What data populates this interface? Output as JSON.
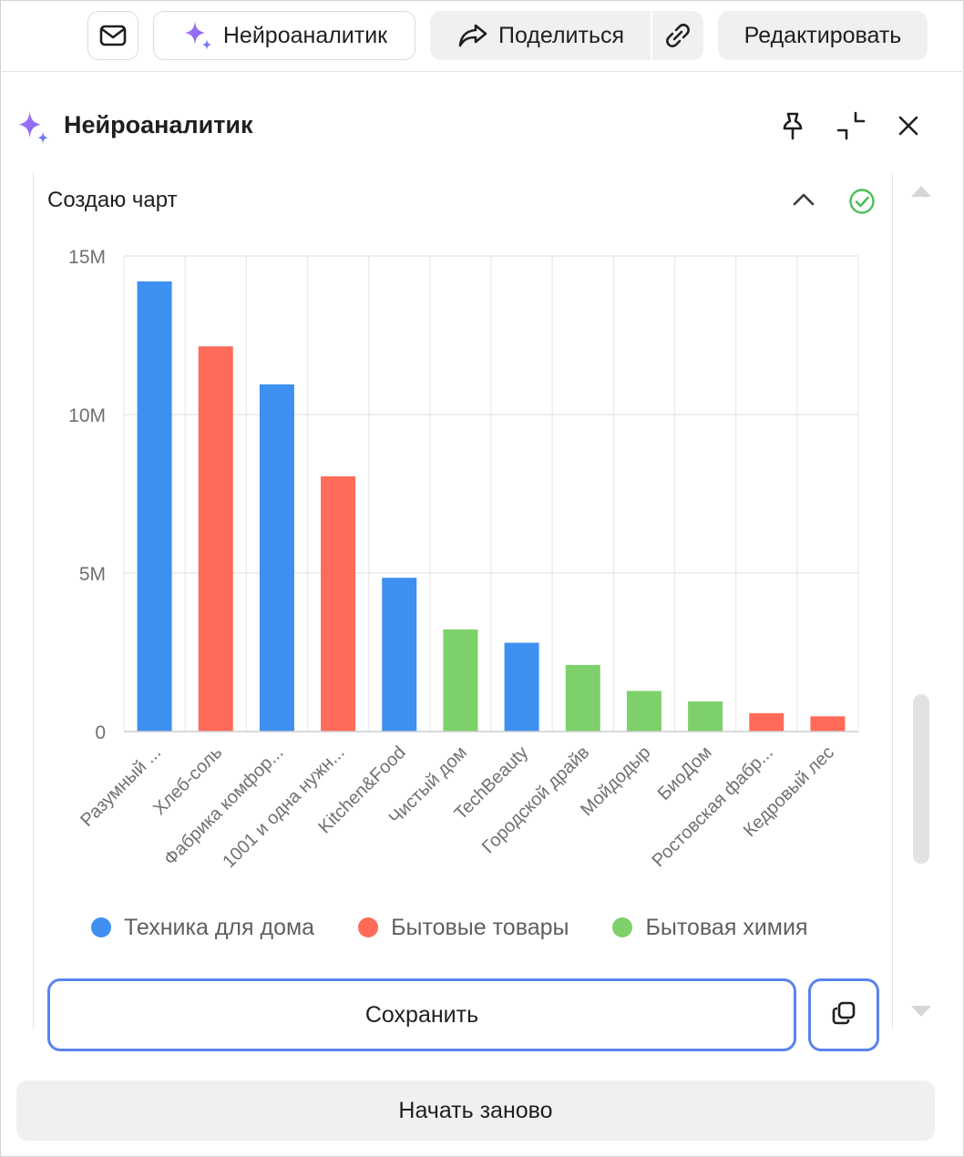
{
  "toolbar": {
    "neuro_label": "Нейроаналитик",
    "share_label": "Поделиться",
    "edit_label": "Редактировать"
  },
  "panel": {
    "title": "Нейроаналитик"
  },
  "card": {
    "status_title": "Создаю чарт"
  },
  "chart_data": {
    "type": "bar",
    "categories": [
      "Разумный ...",
      "Хлеб-соль",
      "Фабрика комфор...",
      "1001 и одна нужн...",
      "Kitchen&Food",
      "Чистый дом",
      "TechBeauty",
      "Городской драйв",
      "Мойдодыр",
      "БиоДом",
      "Ростовская фабр...",
      "Кедровый лес"
    ],
    "values": [
      14200000,
      12150000,
      10950000,
      8050000,
      4850000,
      3220000,
      2800000,
      2100000,
      1280000,
      950000,
      580000,
      480000
    ],
    "groups": [
      "Техника для дома",
      "Бытовые товары",
      "Техника для дома",
      "Бытовые товары",
      "Техника для дома",
      "Бытовая химия",
      "Техника для дома",
      "Бытовая химия",
      "Бытовая химия",
      "Бытовая химия",
      "Бытовые товары",
      "Бытовые товары"
    ],
    "series": [
      {
        "name": "Техника для дома",
        "color": "#3d8ff0"
      },
      {
        "name": "Бытовые товары",
        "color": "#ff6a59"
      },
      {
        "name": "Бытовая химия",
        "color": "#7ed06a"
      }
    ],
    "yticks": [
      {
        "value": 0,
        "label": "0"
      },
      {
        "value": 5000000,
        "label": "5M"
      },
      {
        "value": 10000000,
        "label": "10M"
      },
      {
        "value": 15000000,
        "label": "15M"
      }
    ],
    "ylim": [
      0,
      15000000
    ],
    "grid": true,
    "legend_position": "bottom",
    "title": "",
    "xlabel": "",
    "ylabel": ""
  },
  "actions": {
    "save_label": "Сохранить",
    "restart_label": "Начать заново"
  },
  "icons": {
    "mail": "mail-icon",
    "sparkle": "sparkle-icon",
    "share": "share-arrow-icon",
    "link": "link-icon",
    "pin": "pin-icon",
    "collapse": "minimize-icon",
    "close": "close-icon",
    "chevron": "chevron-up-icon",
    "done": "check-circle-icon",
    "copy": "copy-icon"
  }
}
